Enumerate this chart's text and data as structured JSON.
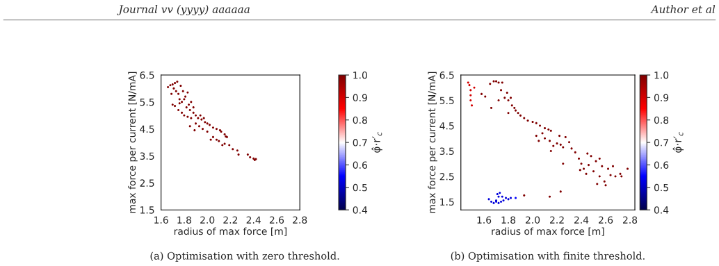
{
  "chart_data": [
    {
      "type": "scatter",
      "xlabel": "radius of max force [m]",
      "ylabel": "max force per current [N/mA]",
      "clabel": "φ̂·r′$_{c}$",
      "annotations": [
        "Journal vv (yyyy) aaaaaa",
        "(a) Optimisation with zero threshold."
      ],
      "xlim": [
        1.6,
        2.8
      ],
      "xticks": [
        1.6,
        1.8,
        {
          "value": 2,
          "label": "2.0"
        },
        2.2,
        2.4,
        2.6,
        2.8
      ],
      "ylim": [
        1.5,
        6.5
      ],
      "yticks": [
        1.5,
        2.5,
        3.5,
        4.5,
        5.5,
        6.5
      ],
      "clim": [
        0.4,
        1.0
      ],
      "cticks": [
        0.4,
        0.5,
        0.6,
        0.7,
        0.8,
        0.9,
        {
          "value": 1,
          "label": "1.0"
        }
      ],
      "grid": false,
      "marker": "circle",
      "series": [
        {
          "x": [
            1.66,
            1.68,
            1.7,
            1.72,
            1.74,
            1.71,
            1.73,
            1.75,
            1.77,
            1.76,
            1.78,
            1.8,
            1.82,
            1.84,
            1.86,
            1.85,
            1.88,
            1.9,
            1.92,
            1.95,
            1.98,
            2.0,
            2.02,
            2.05,
            2.08,
            2.12,
            2.15,
            2.17,
            1.7,
            1.72,
            1.75,
            1.78,
            1.8,
            1.83,
            1.86,
            1.9,
            1.93,
            1.96,
            2.0,
            2.03,
            2.05,
            2.08,
            2.1,
            2.13,
            2.15,
            2.19,
            2.22,
            2.26,
            2.27,
            2.35,
            2.37,
            2.4,
            2.42,
            2.41,
            1.81,
            1.83,
            1.79,
            1.88,
            1.94,
            1.97,
            1.85,
            1.89,
            2.11,
            2.16,
            1.76,
            1.69
          ],
          "values": [
            6.05,
            6.12,
            6.15,
            6.2,
            6.25,
            6.0,
            5.9,
            5.8,
            6.1,
            5.6,
            5.5,
            5.6,
            5.3,
            5.4,
            5.5,
            5.2,
            5.1,
            5.0,
            4.9,
            4.85,
            4.75,
            4.7,
            4.65,
            4.55,
            4.5,
            4.4,
            4.3,
            4.2,
            5.4,
            5.35,
            5.2,
            5.1,
            5.0,
            4.95,
            4.9,
            4.7,
            4.6,
            4.5,
            4.4,
            4.1,
            4.2,
            4.1,
            4.05,
            3.9,
            3.95,
            3.9,
            3.75,
            3.7,
            3.55,
            3.55,
            3.45,
            3.4,
            3.38,
            3.35,
            5.7,
            5.85,
            5.9,
            5.3,
            5.0,
            4.9,
            4.6,
            4.45,
            4.45,
            4.22,
            5.45,
            5.8
          ],
          "cvalues": [
            1,
            1,
            1,
            1,
            1,
            1,
            1,
            1,
            1,
            1,
            1,
            1,
            1,
            1,
            1,
            1,
            1,
            1,
            1,
            1,
            1,
            1,
            1,
            1,
            1,
            1,
            1,
            1,
            1,
            1,
            1,
            1,
            1,
            1,
            1,
            1,
            1,
            1,
            1,
            1,
            1,
            1,
            1,
            1,
            1,
            1,
            1,
            1,
            1,
            1,
            1,
            1,
            1,
            1,
            1,
            1,
            1,
            1,
            1,
            1,
            1,
            1,
            1,
            1,
            1,
            1
          ]
        }
      ]
    },
    {
      "type": "scatter",
      "xlabel": "radius of max force [m]",
      "ylabel": "max force per current [N/mA]",
      "clabel": "φ̂·r′$_{c}$",
      "annotations": [
        "Author et al",
        "(b) Optimisation with finite threshold."
      ],
      "xlim": [
        1.41,
        2.84
      ],
      "xticks": [
        1.6,
        1.8,
        {
          "value": 2,
          "label": "2.0"
        },
        2.2,
        2.4,
        2.6,
        2.8
      ],
      "ylim": [
        1.18,
        6.5
      ],
      "yticks": [
        1.5,
        2.5,
        3.5,
        4.5,
        5.5,
        6.5
      ],
      "clim": [
        0.4,
        1.0
      ],
      "cticks": [
        0.4,
        0.5,
        0.6,
        0.7,
        0.8,
        0.9,
        {
          "value": 1,
          "label": "1.0"
        }
      ],
      "grid": false,
      "marker": "circle",
      "series": [
        {
          "x": [
            1.65,
            1.68,
            1.7,
            1.72,
            1.75,
            1.72,
            1.74,
            1.77,
            1.8,
            1.83,
            1.85,
            1.88,
            1.9,
            1.93,
            1.96,
            2.0,
            2.03,
            2.06,
            2.1,
            2.13,
            2.15,
            1.79,
            1.82,
            1.86,
            1.58,
            1.61,
            1.66,
            1.8,
            2.03,
            2.05,
            2.08,
            2.1,
            2.14,
            2.17,
            2.15,
            2.2,
            2.23,
            2.25,
            2.22,
            2.27,
            2.3,
            2.32,
            2.25,
            2.35,
            2.38,
            2.4,
            2.42,
            2.39,
            2.44,
            2.46,
            2.48,
            2.5,
            2.52,
            2.53,
            2.55,
            2.57,
            2.59,
            2.6,
            2.62,
            2.64,
            2.66,
            2.68,
            2.72,
            2.73,
            2.78,
            2.45,
            2.55,
            1.93,
            2.14,
            2.23,
            1.47,
            1.48,
            1.49,
            1.49,
            1.5,
            1.49,
            1.52,
            1.64,
            1.66,
            1.68,
            1.7,
            1.72,
            1.74,
            1.76,
            1.71,
            1.73,
            1.75,
            1.78,
            1.8,
            1.82,
            1.86,
            1.7,
            1.72
          ],
          "values": [
            6.15,
            6.25,
            6.25,
            6.2,
            6.2,
            5.5,
            5.9,
            5.6,
            5.5,
            5.3,
            5.2,
            5.0,
            4.9,
            4.8,
            4.7,
            4.65,
            4.6,
            4.5,
            4.4,
            4.35,
            4.3,
            5.8,
            5.6,
            5.1,
            5.75,
            5.65,
            5.2,
            5.0,
            4.1,
            3.9,
            4.2,
            4.0,
            3.9,
            3.7,
            3.5,
            3.8,
            3.75,
            3.65,
            4.1,
            4.05,
            3.85,
            3.6,
            3.0,
            3.45,
            3.2,
            3.0,
            2.8,
            2.75,
            2.6,
            2.95,
            3.3,
            2.7,
            3.1,
            2.2,
            2.5,
            2.9,
            2.3,
            2.15,
            2.8,
            2.55,
            2.9,
            2.5,
            2.6,
            2.5,
            2.8,
            3.4,
            3.2,
            1.75,
            1.7,
            1.9,
            6.2,
            6.1,
            5.7,
            5.5,
            5.3,
            5.9,
            6.0,
            1.6,
            1.5,
            1.45,
            1.5,
            1.45,
            1.5,
            1.55,
            1.8,
            1.85,
            1.7,
            1.65,
            1.6,
            1.65,
            1.65,
            1.55,
            1.7
          ],
          "cvalues": [
            1,
            1,
            1,
            1,
            1,
            1,
            1,
            1,
            1,
            1,
            1,
            1,
            1,
            1,
            1,
            1,
            1,
            1,
            1,
            1,
            1,
            1,
            1,
            1,
            1,
            1,
            1,
            1,
            1,
            1,
            1,
            1,
            1,
            1,
            1,
            1,
            1,
            1,
            1,
            1,
            1,
            1,
            1,
            1,
            1,
            1,
            1,
            1,
            1,
            1,
            1,
            1,
            1,
            1,
            1,
            1,
            1,
            1,
            1,
            1,
            1,
            1,
            1,
            1,
            1,
            1,
            1,
            1,
            1,
            1,
            0.9,
            0.9,
            0.9,
            0.9,
            0.9,
            0.9,
            0.9,
            0.52,
            0.52,
            0.52,
            0.52,
            0.52,
            0.52,
            0.52,
            0.52,
            0.52,
            0.52,
            0.52,
            0.52,
            0.52,
            0.55,
            0.52,
            0.52
          ]
        }
      ]
    }
  ]
}
